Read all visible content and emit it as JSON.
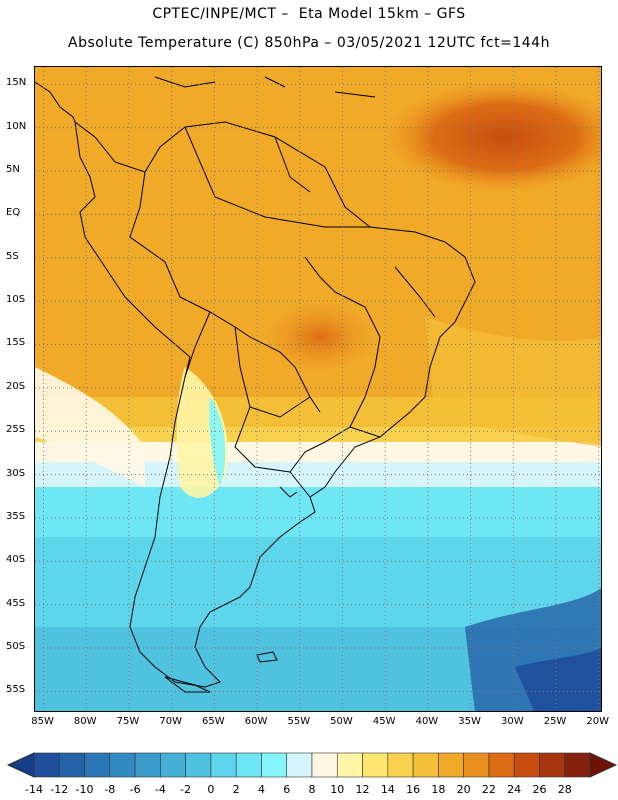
{
  "header": {
    "line1": "CPTEC/INPE/MCT –  Eta Model 15km – GFS",
    "line2": "Absolute Temperature (C) 850hPa – 03/05/2021 12UTC fct=144h"
  },
  "map": {
    "lat_labels": [
      "15N",
      "10N",
      "5N",
      "EQ",
      "5S",
      "10S",
      "15S",
      "20S",
      "25S",
      "30S",
      "35S",
      "40S",
      "45S",
      "50S",
      "55S"
    ],
    "lon_labels": [
      "85W",
      "80W",
      "75W",
      "70W",
      "65W",
      "60W",
      "55W",
      "50W",
      "45W",
      "40W",
      "35W",
      "30W",
      "25W",
      "20W"
    ],
    "extent": {
      "lon_min": -86,
      "lon_max": -19.5,
      "lat_min": -57.5,
      "lat_max": 17
    }
  },
  "colorbar": {
    "labels": [
      "-14",
      "-12",
      "-10",
      "-8",
      "-6",
      "-4",
      "-2",
      "0",
      "2",
      "4",
      "6",
      "8",
      "10",
      "12",
      "14",
      "16",
      "18",
      "20",
      "22",
      "24",
      "26",
      "28"
    ],
    "colors": [
      "#1f4e9c",
      "#2462a8",
      "#2b77b6",
      "#3389c2",
      "#3b9ccc",
      "#45afd6",
      "#4fc2e0",
      "#5dd5ea",
      "#6fe6f3",
      "#84f6fb",
      "#d4f5fb",
      "#fff8e5",
      "#fff5a6",
      "#ffe66f",
      "#f8d24f",
      "#f4bf36",
      "#f1a928",
      "#e88e1e",
      "#dd6d14",
      "#c84e10",
      "#a7350d",
      "#842210"
    ],
    "under_color": "#153e86",
    "over_color": "#6e1208"
  }
}
